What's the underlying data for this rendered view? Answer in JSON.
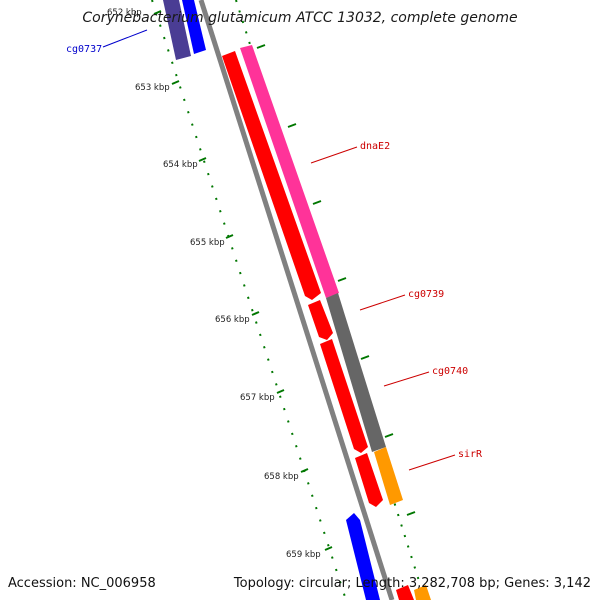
{
  "title": "Corynebacterium glutamicum ATCC 13032, complete genome",
  "footer": {
    "accession": "Accession: NC_006958",
    "summary": "Topology: circular; Length: 3,282,708 bp; Genes: 3,142"
  },
  "ticks": [
    "652 kbp",
    "653 kbp",
    "654 kbp",
    "655 kbp",
    "656 kbp",
    "657 kbp",
    "658 kbp",
    "659 kbp"
  ],
  "gene_labels": [
    {
      "name": "cg0737",
      "color": "#0000cc"
    },
    {
      "name": "dnaE2",
      "color": "#cc0000"
    },
    {
      "name": "cg0739",
      "color": "#cc0000"
    },
    {
      "name": "cg0740",
      "color": "#cc0000"
    },
    {
      "name": "sirR",
      "color": "#cc0000"
    }
  ],
  "colors": {
    "forward_cds": "#0000ff",
    "reverse_cds": "#ff0000",
    "rna": "#ff3399",
    "other": "#666666",
    "highlight": "#ff9900",
    "ruler": "#007700",
    "backbone": "#808080"
  }
}
